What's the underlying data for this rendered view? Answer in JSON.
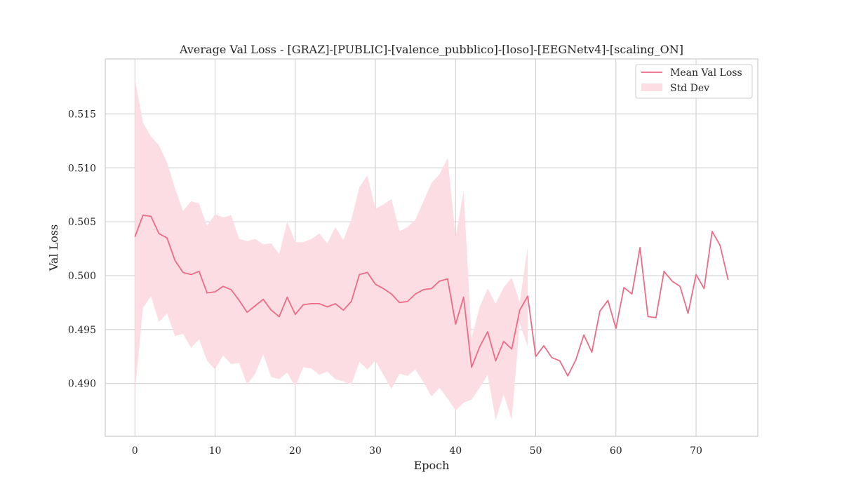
{
  "chart_data": {
    "type": "line",
    "title": "Average Val Loss - [GRAZ]-[PUBLIC]-[valence_pubblico]-[loso]-[EEGNetv4]-[scaling_ON]",
    "xlabel": "Epoch",
    "ylabel": "Val Loss",
    "xlim": [
      -3.7,
      77.7
    ],
    "ylim": [
      0.4851,
      0.5201
    ],
    "xticks": [
      0,
      10,
      20,
      30,
      40,
      50,
      60,
      70
    ],
    "yticks": [
      0.49,
      0.495,
      0.5,
      0.505,
      0.51,
      0.515
    ],
    "ytick_labels": [
      "0.490",
      "0.495",
      "0.500",
      "0.505",
      "0.510",
      "0.515"
    ],
    "grid": true,
    "legend_position": "top-right",
    "colors": {
      "line": "#ed6b86",
      "band": "#fcdde3",
      "frame": "#cccccc"
    },
    "series": [
      {
        "name": "Mean Val Loss",
        "x": [
          0,
          1,
          2,
          3,
          4,
          5,
          6,
          7,
          8,
          9,
          10,
          11,
          12,
          13,
          14,
          15,
          16,
          17,
          18,
          19,
          20,
          21,
          22,
          23,
          24,
          25,
          26,
          27,
          28,
          29,
          30,
          31,
          32,
          33,
          34,
          35,
          36,
          37,
          38,
          39,
          40,
          41,
          42,
          43,
          44,
          45,
          46,
          47,
          48,
          49,
          50,
          51,
          52,
          53,
          54,
          55,
          56,
          57,
          58,
          59,
          60,
          61,
          62,
          63,
          64,
          65,
          66,
          67,
          68,
          69,
          70,
          71,
          72,
          73,
          74
        ],
        "values": [
          0.5036,
          0.5056,
          0.5055,
          0.5039,
          0.5035,
          0.5014,
          0.5003,
          0.5001,
          0.5004,
          0.4984,
          0.4985,
          0.499,
          0.4987,
          0.4977,
          0.4966,
          0.4972,
          0.4978,
          0.4968,
          0.4962,
          0.498,
          0.4964,
          0.4973,
          0.4974,
          0.4974,
          0.4971,
          0.4974,
          0.4968,
          0.4976,
          0.5001,
          0.5003,
          0.4992,
          0.4988,
          0.4983,
          0.4975,
          0.4976,
          0.4983,
          0.4987,
          0.4988,
          0.4995,
          0.4997,
          0.4955,
          0.498,
          0.4915,
          0.4934,
          0.4948,
          0.4921,
          0.4939,
          0.4932,
          0.4968,
          0.4981,
          0.4925,
          0.4935,
          0.4924,
          0.4921,
          0.4907,
          0.4922,
          0.4945,
          0.4929,
          0.4967,
          0.4977,
          0.4951,
          0.4989,
          0.4983,
          0.5026,
          0.4962,
          0.4961,
          0.5004,
          0.4995,
          0.499,
          0.4965,
          0.5001,
          0.4988,
          0.5041,
          0.5028,
          0.4996
        ]
      },
      {
        "name": "Std Dev",
        "type": "band",
        "x": [
          0,
          1,
          2,
          3,
          4,
          5,
          6,
          7,
          8,
          9,
          10,
          11,
          12,
          13,
          14,
          15,
          16,
          17,
          18,
          19,
          20,
          21,
          22,
          23,
          24,
          25,
          26,
          27,
          28,
          29,
          30,
          31,
          32,
          33,
          34,
          35,
          36,
          37,
          38,
          39,
          40,
          41,
          42,
          43,
          44,
          45,
          46,
          47,
          48,
          49
        ],
        "upper": [
          0.5182,
          0.5142,
          0.5129,
          0.5121,
          0.5105,
          0.5081,
          0.506,
          0.5069,
          0.5067,
          0.5046,
          0.5057,
          0.5054,
          0.5056,
          0.5034,
          0.5032,
          0.5034,
          0.5029,
          0.503,
          0.502,
          0.505,
          0.5031,
          0.5031,
          0.5034,
          0.5039,
          0.503,
          0.5045,
          0.5033,
          0.5052,
          0.5082,
          0.5093,
          0.5062,
          0.5066,
          0.5071,
          0.5041,
          0.5045,
          0.5052,
          0.5069,
          0.5086,
          0.5094,
          0.5109,
          0.5036,
          0.5078,
          0.4942,
          0.4971,
          0.4988,
          0.4974,
          0.4989,
          0.4998,
          0.4975,
          0.5027
        ],
        "lower": [
          0.4892,
          0.497,
          0.4981,
          0.4957,
          0.4965,
          0.4944,
          0.4946,
          0.4933,
          0.4941,
          0.4921,
          0.4913,
          0.4926,
          0.4918,
          0.4919,
          0.4899,
          0.4909,
          0.4927,
          0.4906,
          0.4904,
          0.491,
          0.4897,
          0.4915,
          0.4914,
          0.4908,
          0.4911,
          0.4904,
          0.4902,
          0.4899,
          0.492,
          0.4913,
          0.4921,
          0.4908,
          0.4895,
          0.4909,
          0.4907,
          0.4913,
          0.4901,
          0.4888,
          0.4896,
          0.4886,
          0.4875,
          0.4882,
          0.4885,
          0.4896,
          0.4908,
          0.4866,
          0.489,
          0.4866,
          0.4956,
          0.4934
        ]
      }
    ]
  }
}
